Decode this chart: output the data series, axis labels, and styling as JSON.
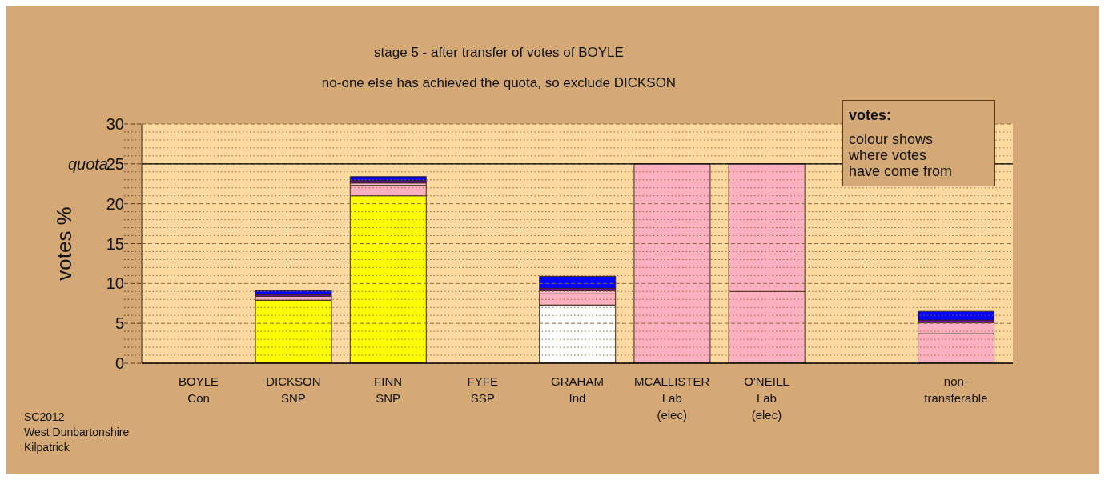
{
  "chart_data": {
    "type": "bar",
    "stacked": true,
    "title": "stage 5 - after transfer of votes of BOYLE",
    "subtitle": "no-one else has achieved the quota, so exclude DICKSON",
    "ylabel": "votes %",
    "categories": [
      "BOYLE\nCon",
      "DICKSON\nSNP",
      "FINN\nSNP",
      "FYFE\nSSP",
      "GRAHAM\nInd",
      "MCALLISTER\nLab\n(elec)",
      "O'NEILL\nLab\n(elec)",
      null,
      "non-\ntransferable"
    ],
    "series": [
      {
        "colors": [
          "#ffff00",
          "#ffff00",
          "#ffff00",
          "#ffff00",
          "#ffffff",
          "#ffb0c0",
          "#ffb0c0",
          "#ffb0c0",
          "#ffb0c0"
        ],
        "values": [
          0,
          7.9,
          21.0,
          0,
          7.3,
          25,
          9.0,
          null,
          3.7
        ]
      },
      {
        "color": "#ffb0c0",
        "values": [
          null,
          0.5,
          1.3,
          null,
          1.4,
          null,
          16.0,
          null,
          1.4
        ]
      },
      {
        "color": "#ffb8c8",
        "values": [
          null,
          null,
          0.3,
          null,
          0.4,
          null,
          null,
          null,
          null
        ]
      },
      {
        "color": "#7000c0",
        "values": [
          null,
          0.2,
          0.3,
          null,
          0.3,
          null,
          null,
          null,
          0.3
        ]
      },
      {
        "color": "#0000ff",
        "values": [
          null,
          0.5,
          0.5,
          null,
          1.5,
          null,
          null,
          null,
          1.1
        ]
      }
    ],
    "ylim": [
      0,
      30
    ],
    "yticks": [
      0,
      {
        "value": 1,
        "label": null
      },
      {
        "value": 2,
        "label": null
      },
      {
        "value": 3,
        "label": null
      },
      {
        "value": 4,
        "label": null
      },
      5,
      {
        "value": 6,
        "label": null
      },
      {
        "value": 7,
        "label": null
      },
      {
        "value": 8,
        "label": null
      },
      {
        "value": 9,
        "label": null
      },
      10,
      {
        "value": 11,
        "label": null
      },
      {
        "value": 12,
        "label": null
      },
      {
        "value": 13,
        "label": null
      },
      {
        "value": 14,
        "label": null
      },
      15,
      {
        "value": 16,
        "label": null
      },
      {
        "value": 17,
        "label": null
      },
      {
        "value": 18,
        "label": null
      },
      {
        "value": 19,
        "label": null
      },
      20,
      {
        "value": 21,
        "label": null
      },
      {
        "value": 22,
        "label": null
      },
      {
        "value": 23,
        "label": null
      },
      {
        "value": 24,
        "label": null
      },
      25,
      {
        "value": 26,
        "label": null
      },
      {
        "value": 27,
        "label": null
      },
      {
        "value": 28,
        "label": null
      },
      {
        "value": 29,
        "label": null
      },
      30
    ],
    "grid": "y",
    "legend": false,
    "ref_lines": [
      {
        "axis": "y",
        "value": 25,
        "label": "quota",
        "color": "#000000",
        "line_style": "solid"
      }
    ],
    "annotations": [
      "votes:\ncolour shows\nwhere votes\nhave come from",
      "SC2012\nWest Dunbartonshire\nKilpatrick"
    ]
  }
}
